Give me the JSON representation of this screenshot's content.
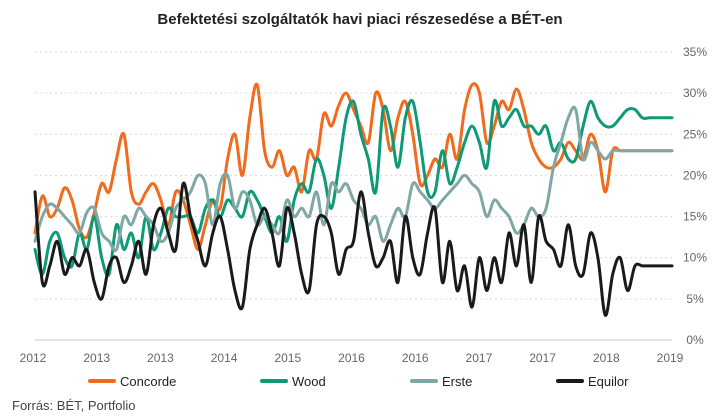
{
  "chart_data": {
    "type": "line",
    "title": "Befektetési szolgáltatók havi piaci részesedése a BÉT-en",
    "source": "Forrás: BÉT, Portfolio",
    "x_tick_labels": [
      "2012",
      "2013",
      "2013",
      "2014",
      "2015",
      "2016",
      "2016",
      "2017",
      "2017",
      "2018",
      "2019"
    ],
    "y_tick_labels": [
      "0%",
      "5%",
      "10%",
      "15%",
      "20%",
      "25%",
      "30%",
      "35%"
    ],
    "ylim": [
      0,
      35
    ],
    "grid": true,
    "legend_position": "bottom",
    "x_index": [
      0,
      1,
      2,
      3,
      4,
      5,
      6,
      7,
      8,
      9,
      10,
      11,
      12,
      13,
      14,
      15,
      16,
      17,
      18,
      19,
      20,
      21,
      22,
      23,
      24,
      25,
      26,
      27,
      28,
      29,
      30,
      31,
      32,
      33,
      34,
      35,
      36,
      37,
      38,
      39,
      40,
      41,
      42,
      43,
      44,
      45,
      46,
      47,
      48,
      49,
      50,
      51,
      52,
      53,
      54,
      55,
      56,
      57,
      58,
      59,
      60,
      61,
      62,
      63,
      64,
      65,
      66,
      67,
      68,
      69,
      70,
      71,
      72,
      73,
      74,
      75,
      76,
      77,
      78,
      79,
      80,
      81,
      82,
      83,
      84,
      85,
      86
    ],
    "series": [
      {
        "name": "Concorde",
        "color": "#f26a1b",
        "values": [
          13,
          17.5,
          15,
          16,
          18.5,
          17,
          13.5,
          12.5,
          15.5,
          19,
          18,
          22,
          25,
          18,
          16.5,
          18,
          19,
          17,
          14,
          18,
          17,
          14,
          11,
          14,
          17,
          16,
          22,
          25,
          20,
          27,
          31,
          23,
          21,
          23,
          20,
          21,
          18,
          23,
          22,
          27.5,
          26,
          28.5,
          30,
          28,
          26,
          24,
          30,
          28,
          23,
          27,
          29,
          25,
          19,
          20,
          22,
          21,
          25,
          22,
          28,
          31,
          30,
          24,
          26,
          29,
          28,
          30.5,
          28,
          24,
          22,
          21,
          21,
          22,
          24,
          23,
          22,
          25,
          23,
          18,
          23,
          23,
          23,
          23,
          23,
          23,
          23,
          23,
          23
        ]
      },
      {
        "name": "Wood",
        "color": "#0e9a77",
        "values": [
          11,
          8,
          12,
          13,
          10,
          9,
          13,
          11,
          15,
          10,
          8,
          14,
          11,
          13,
          10,
          15,
          11,
          13,
          16,
          15,
          15,
          15,
          13,
          16,
          17,
          15,
          17,
          16,
          15,
          18,
          17,
          15,
          13,
          15,
          12,
          17,
          19,
          18,
          22,
          20,
          16,
          21,
          27,
          29,
          25,
          22,
          18,
          28,
          26,
          21,
          27,
          29,
          24,
          18,
          18,
          23,
          19,
          21,
          24,
          26,
          24,
          21,
          29,
          26,
          27,
          28,
          26,
          26,
          25,
          26,
          23,
          24,
          22,
          22,
          26,
          29,
          27,
          26,
          26,
          27,
          28,
          28,
          27,
          27,
          27,
          27,
          27
        ]
      },
      {
        "name": "Erste",
        "color": "#7fa7a6",
        "values": [
          12,
          15,
          16.5,
          16,
          15,
          14,
          13,
          15.5,
          16,
          13,
          12,
          11,
          15,
          14,
          16,
          15,
          14,
          12,
          13,
          16,
          17,
          18,
          20,
          19,
          14,
          19,
          20,
          16,
          18,
          17,
          14,
          15,
          14,
          13,
          17,
          15,
          16,
          15,
          18,
          14,
          19,
          18,
          19,
          17,
          16,
          14,
          15,
          12,
          14,
          16,
          15,
          19,
          18,
          17,
          16,
          17,
          18,
          19,
          20,
          19,
          18,
          15,
          17,
          16,
          15,
          13,
          14,
          16,
          15,
          16,
          21,
          24,
          27,
          28,
          22,
          24,
          23,
          22,
          23,
          23,
          23,
          23,
          23,
          23,
          23,
          23,
          23
        ]
      },
      {
        "name": "Equilor",
        "color": "#1a1a1a",
        "values": [
          18,
          7,
          9,
          12,
          8,
          10,
          9,
          11,
          7,
          5,
          9,
          10,
          7,
          9,
          12,
          8,
          14,
          16,
          13,
          11,
          19,
          15,
          12,
          9,
          13,
          15,
          11,
          6,
          4,
          11,
          14,
          16,
          13,
          9,
          16,
          13,
          8,
          6,
          14,
          15,
          13,
          8,
          11,
          12,
          18,
          13,
          9,
          10,
          12,
          7,
          15,
          10,
          8,
          13,
          16,
          7,
          12,
          6,
          9,
          4,
          10,
          6,
          10,
          7,
          13,
          9,
          14,
          7,
          15,
          12,
          11,
          9,
          14,
          9,
          8,
          13,
          10,
          3,
          8,
          10,
          6,
          9,
          9,
          9,
          9,
          9,
          9
        ]
      }
    ]
  }
}
